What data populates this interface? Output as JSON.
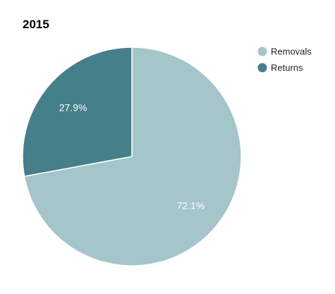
{
  "chart_data": {
    "type": "pie",
    "title": "2015",
    "legend_position": "top-right",
    "slices": [
      {
        "label": "Removals",
        "value": 72.1,
        "display": "72.1%",
        "color": "#a4c5ca"
      },
      {
        "label": "Returns",
        "value": 27.9,
        "display": "27.9%",
        "color": "#457f8a"
      }
    ],
    "start_angle_deg": 0,
    "direction": "clockwise"
  }
}
